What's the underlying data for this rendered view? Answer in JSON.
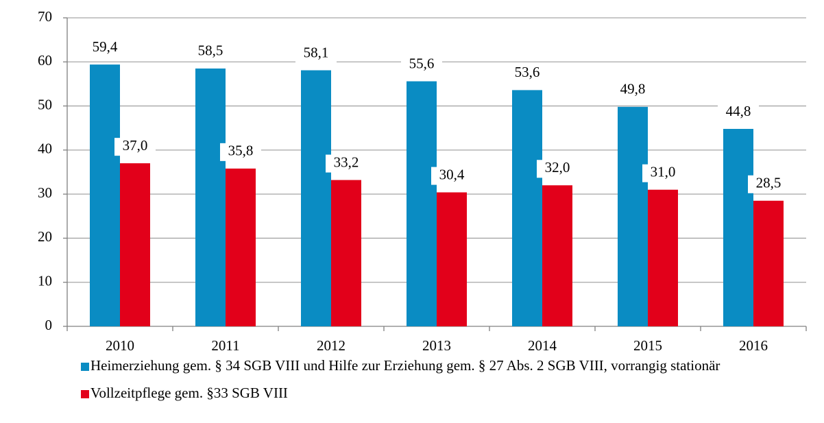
{
  "chart_data": {
    "type": "bar",
    "categories": [
      "2010",
      "2011",
      "2012",
      "2013",
      "2014",
      "2015",
      "2016"
    ],
    "series": [
      {
        "name": "Heimerziehung gem. § 34 SGB VIII und Hilfe zur Erziehung gem. § 27 Abs. 2 SGB VIII, vorrangig stationär",
        "color": "#0a8cc3",
        "values": [
          59.4,
          58.5,
          58.1,
          55.6,
          53.6,
          49.8,
          44.8
        ],
        "value_labels": [
          "59,4",
          "58,5",
          "58,1",
          "55,6",
          "53,6",
          "49,8",
          "44,8"
        ]
      },
      {
        "name": "Vollzeitpflege gem. §33 SGB VIII",
        "color": "#e2001a",
        "values": [
          37.0,
          35.8,
          33.2,
          30.4,
          32.0,
          31.0,
          28.5
        ],
        "value_labels": [
          "37,0",
          "35,8",
          "33,2",
          "30,4",
          "32,0",
          "31,0",
          "28,5"
        ]
      }
    ],
    "ylim": [
      0,
      70
    ],
    "yticks": [
      0,
      10,
      20,
      30,
      40,
      50,
      60,
      70
    ],
    "grid": true,
    "legend": "bottom"
  }
}
